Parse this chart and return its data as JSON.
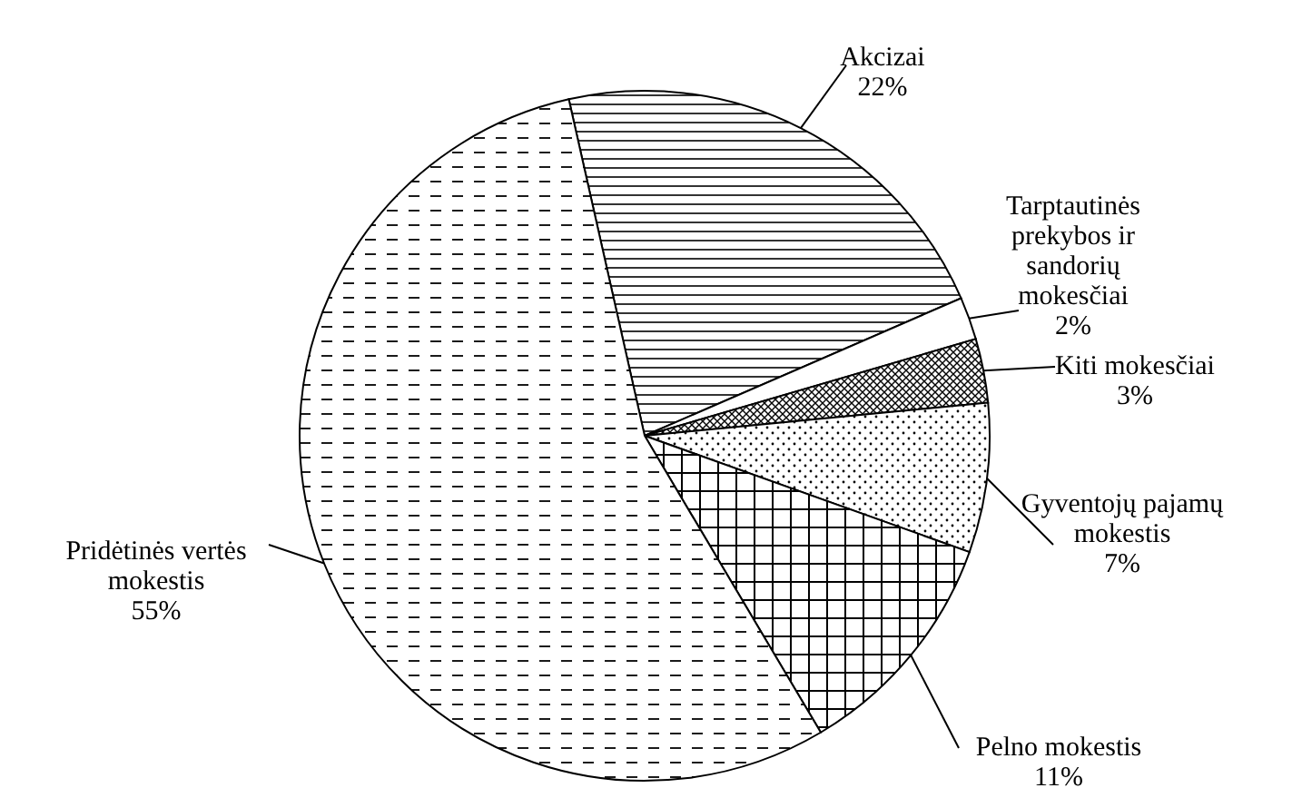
{
  "chart_data": {
    "type": "pie",
    "categories": [
      "Akcizai",
      "Tarptautinės prekybos ir sandorių mokesčiai",
      "Kiti mokesčiai",
      "Gyventojų pajamų mokestis",
      "Pelno mokestis",
      "Pridėtinės vertės mokestis"
    ],
    "values": [
      22,
      2,
      3,
      7,
      11,
      55
    ],
    "colors": [
      "#000000",
      "#ffffff",
      "#000000",
      "#000000",
      "#000000",
      "#000000"
    ],
    "value_labels": [
      "22%",
      "2%",
      "3%",
      "7%",
      "11%",
      "55%"
    ]
  }
}
